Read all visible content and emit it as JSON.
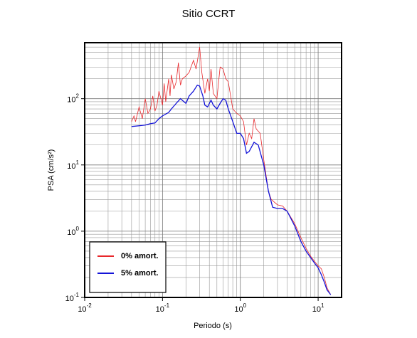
{
  "chart_data": {
    "type": "line",
    "title": "Sitio CCRT",
    "xlabel": "Periodo (s)",
    "ylabel": "PSA (cm/s²)",
    "xscale": "log",
    "yscale": "log",
    "grid": true,
    "legend": "lower left",
    "xlim": [
      0.01,
      20
    ],
    "ylim": [
      0.1,
      700
    ],
    "xticks": [
      {
        "value": 0.01,
        "label": "10",
        "exponent": "-2"
      },
      {
        "value": 0.1,
        "label": "10",
        "exponent": "-1"
      },
      {
        "value": 1,
        "label": "10",
        "exponent": "0"
      },
      {
        "value": 10,
        "label": "10",
        "exponent": "1"
      }
    ],
    "yticks": [
      {
        "value": 0.1,
        "label": "10",
        "exponent": "-1"
      },
      {
        "value": 1,
        "label": "10",
        "exponent": "0"
      },
      {
        "value": 10,
        "label": "10",
        "exponent": "1"
      },
      {
        "value": 100,
        "label": "10",
        "exponent": "2"
      }
    ],
    "xminor": [
      0.02,
      0.03,
      0.04,
      0.05,
      0.06,
      0.07,
      0.08,
      0.09,
      0.2,
      0.3,
      0.4,
      0.5,
      0.6,
      0.7,
      0.8,
      0.9,
      2,
      3,
      4,
      5,
      6,
      7,
      8,
      9
    ],
    "yminor": [
      0.2,
      0.3,
      0.4,
      0.5,
      0.6,
      0.7,
      0.8,
      0.9,
      2,
      3,
      4,
      5,
      6,
      7,
      8,
      9,
      20,
      30,
      40,
      50,
      60,
      70,
      80,
      90,
      200,
      300,
      400,
      500,
      600
    ],
    "series": [
      {
        "name": "0% amort.",
        "color": "#e8272b",
        "x": [
          0.04,
          0.043,
          0.045,
          0.05,
          0.055,
          0.06,
          0.065,
          0.07,
          0.075,
          0.08,
          0.085,
          0.09,
          0.1,
          0.105,
          0.11,
          0.12,
          0.125,
          0.13,
          0.14,
          0.15,
          0.16,
          0.17,
          0.18,
          0.2,
          0.22,
          0.25,
          0.27,
          0.3,
          0.32,
          0.35,
          0.38,
          0.4,
          0.42,
          0.45,
          0.5,
          0.55,
          0.6,
          0.65,
          0.7,
          0.8,
          0.9,
          1.0,
          1.1,
          1.2,
          1.3,
          1.4,
          1.5,
          1.6,
          1.8,
          2.0,
          2.3,
          2.5,
          3,
          3.5,
          4,
          5,
          6,
          7,
          8,
          9,
          10,
          11,
          12,
          13,
          14.5
        ],
        "values": [
          45,
          55,
          45,
          75,
          50,
          100,
          60,
          70,
          110,
          65,
          80,
          130,
          80,
          170,
          90,
          200,
          110,
          230,
          140,
          180,
          350,
          160,
          200,
          220,
          250,
          380,
          280,
          600,
          250,
          120,
          200,
          130,
          280,
          120,
          100,
          300,
          280,
          200,
          180,
          70,
          60,
          55,
          45,
          20,
          30,
          25,
          50,
          35,
          30,
          12,
          4,
          3,
          2.5,
          2.4,
          2,
          1.3,
          0.8,
          0.55,
          0.42,
          0.35,
          0.3,
          0.27,
          0.2,
          0.14,
          0.11
        ]
      },
      {
        "name": "5% amort.",
        "color": "#1414d8",
        "x": [
          0.04,
          0.05,
          0.06,
          0.07,
          0.08,
          0.09,
          0.1,
          0.12,
          0.13,
          0.15,
          0.17,
          0.2,
          0.22,
          0.25,
          0.28,
          0.3,
          0.33,
          0.35,
          0.38,
          0.42,
          0.45,
          0.5,
          0.55,
          0.6,
          0.65,
          0.7,
          0.8,
          0.9,
          1.0,
          1.1,
          1.2,
          1.3,
          1.5,
          1.7,
          2.0,
          2.3,
          2.6,
          3,
          3.5,
          4,
          5,
          6,
          7,
          8,
          9,
          10,
          11,
          12,
          13,
          14.5
        ],
        "values": [
          38,
          39,
          40,
          42,
          43,
          50,
          55,
          62,
          70,
          85,
          100,
          85,
          110,
          130,
          160,
          155,
          110,
          80,
          75,
          95,
          80,
          70,
          85,
          100,
          95,
          70,
          45,
          30,
          30,
          25,
          15,
          16,
          22,
          20,
          10,
          4,
          2.3,
          2.2,
          2.2,
          2,
          1.2,
          0.7,
          0.5,
          0.4,
          0.33,
          0.28,
          0.22,
          0.17,
          0.13,
          0.11
        ]
      }
    ]
  }
}
